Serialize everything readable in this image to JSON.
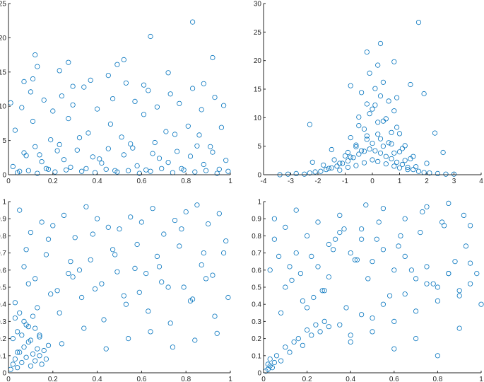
{
  "style": {
    "marker_color": "#0072BD",
    "axis_color": "#262626",
    "background": "#ffffff"
  },
  "chart_data": [
    {
      "type": "scatter",
      "title": "",
      "xlabel": "",
      "ylabel": "",
      "xlim": [
        0,
        1
      ],
      "ylim": [
        0,
        25
      ],
      "xticks": [
        0,
        0.2,
        0.4,
        0.6,
        0.8,
        1
      ],
      "yticks": [
        0,
        5,
        10,
        15,
        20,
        25
      ],
      "xtick_labels": [
        "0",
        "0.2",
        "0.4",
        "0.6",
        "0.8",
        "1"
      ],
      "ytick_labels": [
        "0",
        "5",
        "10",
        "15",
        "20",
        "25"
      ],
      "grid": false,
      "marker": "open-circle",
      "series": [
        {
          "x": [
            0.02,
            0.05,
            0.08,
            0.12,
            0.15,
            0.18,
            0.22,
            0.25,
            0.28,
            0.32,
            0.35,
            0.38,
            0.42,
            0.45,
            0.48,
            0.52,
            0.55,
            0.58,
            0.62,
            0.65,
            0.68,
            0.72,
            0.75,
            0.78,
            0.82,
            0.85,
            0.88,
            0.92,
            0.95,
            0.98,
            0.03,
            0.07,
            0.11,
            0.14,
            0.19,
            0.23,
            0.27,
            0.31,
            0.36,
            0.41,
            0.46,
            0.51,
            0.56,
            0.61,
            0.66,
            0.71,
            0.76,
            0.81,
            0.86,
            0.91,
            0.96,
            0.04,
            0.09,
            0.13,
            0.17,
            0.21,
            0.26,
            0.33,
            0.39,
            0.44,
            0.49,
            0.54,
            0.59,
            0.64,
            0.69,
            0.74,
            0.79,
            0.84,
            0.89,
            0.94,
            0.99,
            0.01,
            0.06,
            0.1,
            0.16,
            0.2,
            0.24,
            0.29,
            0.34,
            0.4,
            0.47,
            0.53,
            0.57,
            0.63,
            0.67,
            0.73,
            0.77,
            0.83,
            0.87,
            0.93,
            0.97,
            0.12,
            0.13,
            0.27,
            0.29,
            0.49,
            0.52,
            0.64,
            0.83,
            0.92,
            0.07,
            0.11,
            0.23,
            0.37,
            0.45,
            0.61,
            0.72,
            0.88
          ],
          "y": [
            1.2,
            0.5,
            2.8,
            4.1,
            1.9,
            0.8,
            3.5,
            2.2,
            1.1,
            5.4,
            0.9,
            2.6,
            1.7,
            3.8,
            0.6,
            2.9,
            4.5,
            1.3,
            0.7,
            3.1,
            2.4,
            1.8,
            5.9,
            0.9,
            2.7,
            4.2,
            1.5,
            3.3,
            0.8,
            2.1,
            6.5,
            3.2,
            7.8,
            2.9,
            5.1,
            4.4,
            8.2,
            3.6,
            6.1,
            2.3,
            7.4,
            5.5,
            3.9,
            8.8,
            4.7,
            6.3,
            3.4,
            7.1,
            5.8,
            4.1,
            6.9,
            0.3,
            0.6,
            0.2,
            0.9,
            0.4,
            0.7,
            0.5,
            0.3,
            0.8,
            0.4,
            0.6,
            0.2,
            0.5,
            0.9,
            0.3,
            0.7,
            0.4,
            0.6,
            0.2,
            0.5,
            10.5,
            9.8,
            12.1,
            10.9,
            9.3,
            11.5,
            10.2,
            12.8,
            9.6,
            11.1,
            13.4,
            10.7,
            12.3,
            9.9,
            11.8,
            10.4,
            12.6,
            9.5,
            11.3,
            10.1,
            17.5,
            15.8,
            16.4,
            12.9,
            16.1,
            16.8,
            20.2,
            22.3,
            17.1,
            13.6,
            14.0,
            15.2,
            13.8,
            14.5,
            13.1,
            14.9,
            13.3
          ]
        }
      ]
    },
    {
      "type": "scatter",
      "title": "",
      "xlabel": "",
      "ylabel": "",
      "xlim": [
        -4,
        4
      ],
      "ylim": [
        0,
        30
      ],
      "xticks": [
        -4,
        -3,
        -2,
        -1,
        0,
        1,
        2,
        3,
        4
      ],
      "yticks": [
        0,
        5,
        10,
        15,
        20,
        25,
        30
      ],
      "xtick_labels": [
        "-4",
        "-3",
        "-2",
        "-1",
        "0",
        "1",
        "2",
        "3",
        "4"
      ],
      "ytick_labels": [
        "0",
        "5",
        "10",
        "15",
        "20",
        "25",
        "30"
      ],
      "grid": false,
      "marker": "open-circle",
      "series": [
        {
          "x": [
            -3.4,
            -3.1,
            -2.8,
            -2.5,
            -2.3,
            -2.1,
            -1.9,
            -1.7,
            -1.5,
            -1.3,
            -1.1,
            -0.9,
            -0.7,
            -0.5,
            -0.3,
            -0.1,
            0.1,
            0.3,
            0.5,
            0.7,
            0.9,
            1.1,
            1.3,
            1.5,
            1.7,
            1.9,
            2.1,
            2.4,
            2.7,
            3.0,
            -1.6,
            -1.2,
            -0.8,
            -0.4,
            0.0,
            0.4,
            0.8,
            1.2,
            1.6,
            -1.0,
            -0.6,
            -0.2,
            0.2,
            0.6,
            1.0,
            1.4,
            -0.8,
            -0.3,
            0.2,
            0.7,
            1.2,
            -0.5,
            0.0,
            0.5,
            1.0,
            -0.2,
            0.3,
            0.8,
            0.1,
            0.6,
            -0.4,
            0.4,
            0.9,
            -0.1,
            0.2,
            -2.2,
            -1.8,
            -1.4,
            -0.9,
            -0.6,
            -0.2,
            0.3,
            0.7,
            1.1,
            1.5,
            2.0,
            -1.2,
            -0.9,
            -0.6,
            -0.3,
            0.0,
            0.2,
            0.5,
            0.8,
            1.0,
            1.3,
            -0.5,
            -0.1,
            0.1,
            0.4,
            0.9,
            -0.2,
            0.3,
            1.4,
            1.9,
            2.3,
            -2.3,
            -1.5,
            -0.8,
            0.8,
            1.7,
            2.6
          ],
          "y": [
            0.0,
            0.1,
            0.2,
            0.1,
            0.3,
            0.5,
            0.6,
            0.9,
            1.2,
            1.5,
            2.0,
            2.4,
            3.0,
            3.6,
            4.1,
            4.5,
            4.2,
            3.8,
            3.2,
            2.8,
            2.2,
            1.8,
            1.3,
            0.9,
            0.6,
            0.4,
            0.3,
            0.2,
            0.1,
            0.1,
            1.1,
            2.0,
            3.1,
            4.2,
            5.5,
            5.0,
            3.8,
            2.5,
            1.4,
            3.3,
            4.9,
            6.2,
            7.1,
            5.6,
            4.0,
            2.8,
            6.5,
            8.0,
            9.2,
            7.4,
            5.1,
            10.1,
            11.5,
            9.8,
            7.2,
            12.4,
            13.8,
            11.2,
            15.1,
            12.9,
            14.4,
            16.2,
            13.5,
            17.8,
            19.2,
            2.2,
            1.7,
            2.6,
            3.9,
            5.2,
            6.8,
            6.3,
            5.4,
            4.6,
            3.2,
            2.0,
            0.8,
            1.3,
            1.6,
            2.1,
            2.6,
            2.3,
            1.9,
            1.5,
            1.2,
            0.9,
            8.6,
            10.7,
            12.2,
            9.4,
            8.3,
            21.5,
            23.0,
            15.8,
            14.2,
            7.3,
            8.8,
            4.4,
            15.6,
            19.8,
            26.7,
            3.9
          ]
        }
      ]
    },
    {
      "type": "scatter",
      "title": "",
      "xlabel": "",
      "ylabel": "",
      "xlim": [
        0,
        1
      ],
      "ylim": [
        0,
        1
      ],
      "xticks": [
        0,
        0.2,
        0.4,
        0.6,
        0.8,
        1
      ],
      "yticks": [
        0,
        0.1,
        0.2,
        0.3,
        0.4,
        0.5,
        0.6,
        0.7,
        0.8,
        0.9,
        1
      ],
      "xtick_labels": [
        "0",
        "0.2",
        "0.4",
        "0.6",
        "0.8",
        "1"
      ],
      "ytick_labels": [
        "0",
        "0.1",
        "0.2",
        "0.3",
        "0.4",
        "0.5",
        "0.6",
        "0.7",
        "0.8",
        "0.9",
        "1"
      ],
      "grid": false,
      "marker": "open-circle",
      "series": [
        {
          "x": [
            0.01,
            0.02,
            0.03,
            0.04,
            0.05,
            0.06,
            0.07,
            0.08,
            0.09,
            0.1,
            0.11,
            0.12,
            0.13,
            0.14,
            0.15,
            0.16,
            0.17,
            0.18,
            0.02,
            0.04,
            0.06,
            0.08,
            0.1,
            0.12,
            0.14,
            0.03,
            0.05,
            0.07,
            0.09,
            0.11,
            0.05,
            0.15,
            0.25,
            0.35,
            0.45,
            0.55,
            0.65,
            0.75,
            0.85,
            0.95,
            0.08,
            0.18,
            0.28,
            0.38,
            0.48,
            0.58,
            0.68,
            0.78,
            0.88,
            0.98,
            0.12,
            0.22,
            0.32,
            0.42,
            0.52,
            0.62,
            0.72,
            0.82,
            0.92,
            0.03,
            0.13,
            0.23,
            0.33,
            0.43,
            0.53,
            0.63,
            0.73,
            0.83,
            0.93,
            0.07,
            0.17,
            0.27,
            0.37,
            0.47,
            0.57,
            0.67,
            0.77,
            0.87,
            0.97,
            0.1,
            0.2,
            0.3,
            0.4,
            0.5,
            0.6,
            0.7,
            0.8,
            0.9,
            0.04,
            0.14,
            0.24,
            0.34,
            0.44,
            0.54,
            0.64,
            0.74,
            0.84,
            0.94,
            0.09,
            0.19,
            0.29,
            0.39,
            0.49,
            0.59,
            0.69,
            0.79,
            0.89,
            0.99
          ],
          "y": [
            0.02,
            0.05,
            0.08,
            0.03,
            0.12,
            0.06,
            0.15,
            0.09,
            0.18,
            0.04,
            0.11,
            0.07,
            0.14,
            0.1,
            0.05,
            0.13,
            0.08,
            0.16,
            0.2,
            0.24,
            0.22,
            0.28,
            0.19,
            0.26,
            0.21,
            0.32,
            0.35,
            0.3,
            0.27,
            0.33,
            0.95,
            0.88,
            0.92,
            0.97,
            0.85,
            0.91,
            0.96,
            0.89,
            0.98,
            0.93,
            0.72,
            0.78,
            0.65,
            0.81,
            0.69,
            0.75,
            0.62,
            0.84,
            0.7,
            0.77,
            0.55,
            0.48,
            0.6,
            0.52,
            0.45,
            0.58,
            0.5,
            0.42,
            0.57,
            0.41,
            0.38,
            0.35,
            0.44,
            0.31,
            0.4,
            0.36,
            0.29,
            0.43,
            0.33,
            0.62,
            0.69,
            0.58,
            0.66,
            0.72,
            0.61,
            0.68,
            0.74,
            0.63,
            0.7,
            0.82,
            0.86,
            0.79,
            0.9,
            0.84,
            0.88,
            0.81,
            0.94,
            0.87,
            0.12,
            0.22,
            0.17,
            0.26,
            0.14,
            0.2,
            0.24,
            0.15,
            0.19,
            0.23,
            0.52,
            0.46,
            0.56,
            0.49,
            0.59,
            0.47,
            0.53,
            0.5,
            0.55,
            0.44
          ]
        }
      ]
    },
    {
      "type": "scatter",
      "title": "",
      "xlabel": "",
      "ylabel": "",
      "xlim": [
        0,
        1
      ],
      "ylim": [
        0,
        1
      ],
      "xticks": [
        0,
        0.2,
        0.4,
        0.6,
        0.8,
        1
      ],
      "yticks": [
        0,
        0.1,
        0.2,
        0.3,
        0.4,
        0.5,
        0.6,
        0.7,
        0.8,
        0.9,
        1
      ],
      "xtick_labels": [
        "0",
        "0.2",
        "0.4",
        "0.6",
        "0.8",
        "1"
      ],
      "ytick_labels": [
        "0",
        "0.1",
        "0.2",
        "0.3",
        "0.4",
        "0.5",
        "0.6",
        "0.7",
        "0.8",
        "0.9",
        "1"
      ],
      "grid": false,
      "marker": "open-circle",
      "series": [
        {
          "x": [
            0.01,
            0.02,
            0.03,
            0.04,
            0.05,
            0.02,
            0.03,
            0.06,
            0.08,
            0.1,
            0.12,
            0.14,
            0.16,
            0.18,
            0.2,
            0.22,
            0.24,
            0.26,
            0.28,
            0.3,
            0.05,
            0.1,
            0.15,
            0.2,
            0.25,
            0.3,
            0.35,
            0.4,
            0.45,
            0.5,
            0.55,
            0.6,
            0.65,
            0.7,
            0.75,
            0.8,
            0.85,
            0.9,
            0.95,
            1.0,
            0.08,
            0.18,
            0.28,
            0.38,
            0.48,
            0.58,
            0.68,
            0.78,
            0.88,
            0.98,
            0.12,
            0.22,
            0.32,
            0.42,
            0.52,
            0.62,
            0.72,
            0.82,
            0.92,
            0.35,
            0.45,
            0.55,
            0.65,
            0.75,
            0.85,
            0.95,
            0.4,
            0.5,
            0.6,
            0.7,
            0.8,
            0.9,
            0.05,
            0.15,
            0.25,
            0.35,
            0.45,
            0.55,
            0.65,
            0.75,
            0.85,
            0.95,
            0.1,
            0.2,
            0.3,
            0.4,
            0.5,
            0.6,
            0.7,
            0.8,
            0.9,
            0.03,
            0.13,
            0.23,
            0.33,
            0.43,
            0.53,
            0.63,
            0.73,
            0.83,
            0.93,
            0.07,
            0.17,
            0.27,
            0.37,
            0.47
          ],
          "y": [
            0.01,
            0.02,
            0.04,
            0.03,
            0.06,
            0.05,
            0.08,
            0.1,
            0.07,
            0.15,
            0.12,
            0.18,
            0.2,
            0.16,
            0.25,
            0.22,
            0.28,
            0.24,
            0.3,
            0.27,
            0.9,
            0.85,
            0.95,
            0.8,
            0.88,
            0.75,
            0.82,
            0.7,
            0.78,
            0.65,
            0.72,
            0.6,
            0.68,
            0.55,
            0.62,
            0.5,
            0.58,
            0.45,
            0.52,
            0.4,
            0.35,
            0.42,
            0.48,
            0.38,
            0.55,
            0.45,
            0.6,
            0.52,
            0.65,
            0.58,
            0.62,
            0.68,
            0.72,
            0.66,
            0.78,
            0.74,
            0.82,
            0.88,
            0.92,
            0.28,
            0.34,
            0.4,
            0.46,
            0.52,
            0.58,
            0.64,
            0.18,
            0.24,
            0.3,
            0.36,
            0.42,
            0.48,
            0.78,
            0.7,
            0.62,
            0.92,
            0.84,
            0.96,
            0.9,
            0.97,
            0.99,
            0.86,
            0.5,
            0.38,
            0.56,
            0.22,
            0.32,
            0.14,
            0.2,
            0.1,
            0.26,
            0.6,
            0.54,
            0.44,
            0.78,
            0.66,
            0.88,
            0.8,
            0.94,
            0.86,
            0.74,
            0.68,
            0.58,
            0.48,
            0.84,
            0.98
          ]
        }
      ]
    }
  ]
}
